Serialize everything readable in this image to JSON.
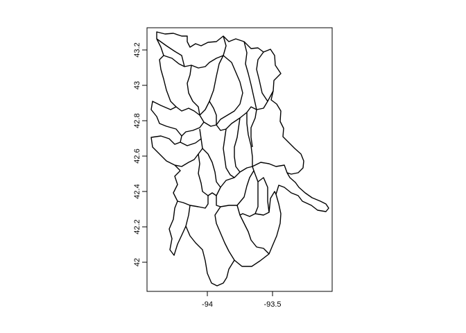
{
  "chart_data": {
    "type": "map",
    "title": "",
    "xlabel": "",
    "ylabel": "",
    "xlim": [
      -94.44,
      -93.02
    ],
    "ylim": [
      41.83,
      43.33
    ],
    "x_ticks": [
      {
        "value": -94.0,
        "label": "-94"
      },
      {
        "value": -93.5,
        "label": "-93.5"
      }
    ],
    "y_ticks": [
      {
        "value": 42.0,
        "label": "42"
      },
      {
        "value": 42.2,
        "label": "42.2"
      },
      {
        "value": 42.4,
        "label": "42.4"
      },
      {
        "value": 42.6,
        "label": "42.6"
      },
      {
        "value": 42.8,
        "label": "42.8"
      },
      {
        "value": 43.0,
        "label": "43"
      },
      {
        "value": 43.2,
        "label": "43.2"
      }
    ],
    "grid": false,
    "stroke_color": "#000000",
    "fill_color": "none"
  }
}
